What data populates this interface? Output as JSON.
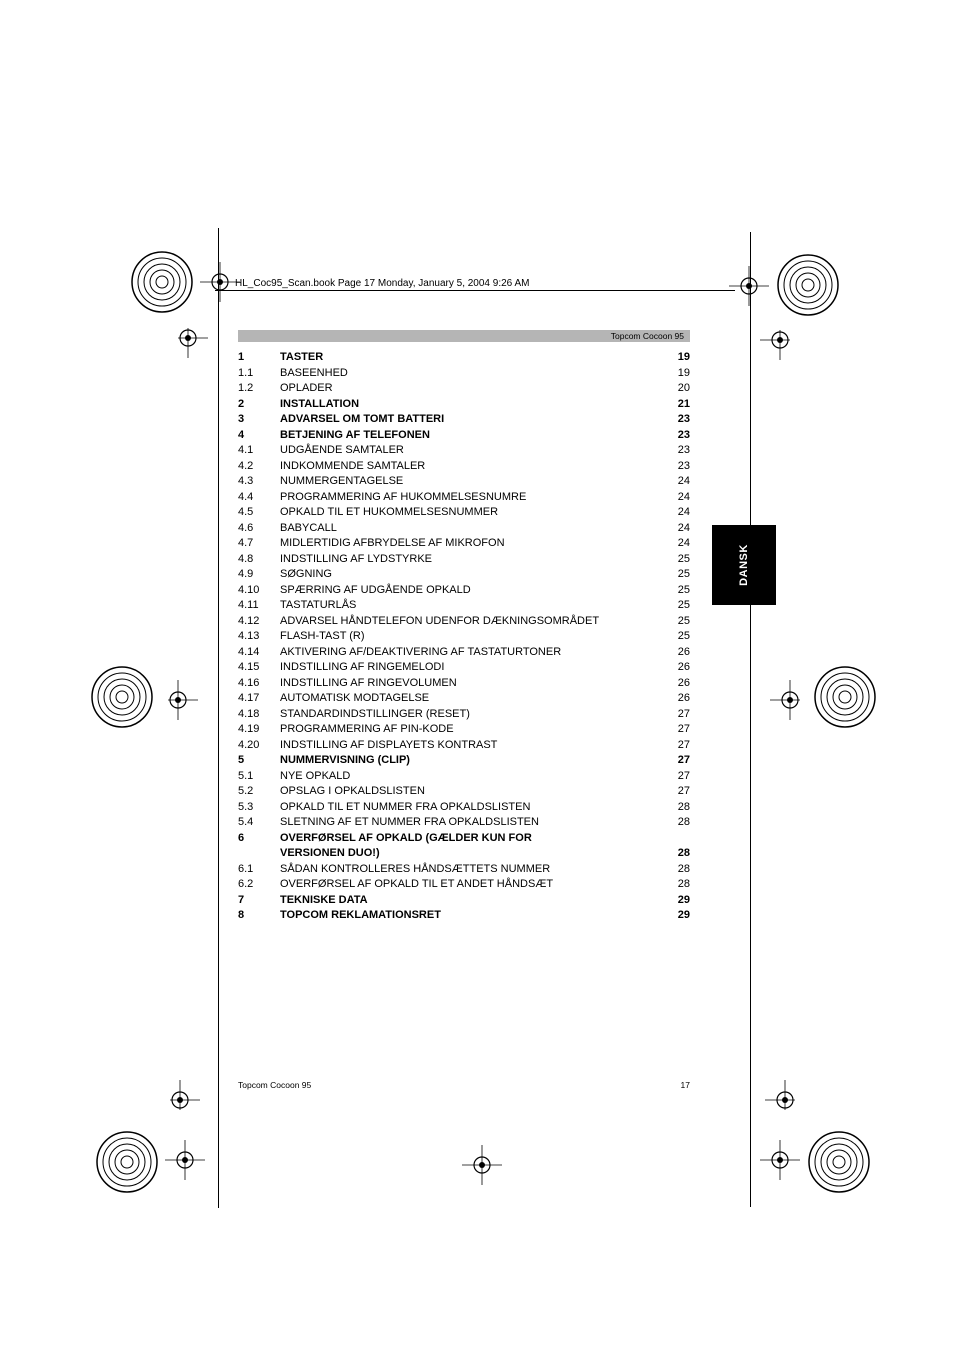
{
  "book_header": "HL_Coc95_Scan.book  Page 17  Monday, January 5, 2004  9:26 AM",
  "doc_title": "Topcom Cocoon 95",
  "side_tab": "DANSK",
  "footer_left": "Topcom Cocoon 95",
  "footer_page": "17",
  "toc": [
    {
      "num": "1",
      "title": "TASTER",
      "page": "19",
      "bold": true
    },
    {
      "num": "1.1",
      "title": "BASEENHED",
      "page": "19",
      "bold": false
    },
    {
      "num": "1.2",
      "title": "OPLADER",
      "page": "20",
      "bold": false
    },
    {
      "num": "2",
      "title": "INSTALLATION",
      "page": "21",
      "bold": true
    },
    {
      "num": "3",
      "title": "ADVARSEL OM TOMT BATTERI",
      "page": "23",
      "bold": true
    },
    {
      "num": "4",
      "title": "BETJENING AF TELEFONEN",
      "page": "23",
      "bold": true
    },
    {
      "num": "4.1",
      "title": "UDGÅENDE SAMTALER",
      "page": "23",
      "bold": false
    },
    {
      "num": "4.2",
      "title": "INDKOMMENDE SAMTALER",
      "page": "23",
      "bold": false
    },
    {
      "num": "4.3",
      "title": "NUMMERGENTAGELSE",
      "page": "24",
      "bold": false
    },
    {
      "num": "4.4",
      "title": "PROGRAMMERING AF HUKOMMELSESNUMRE",
      "page": "24",
      "bold": false
    },
    {
      "num": "4.5",
      "title": "OPKALD TIL ET HUKOMMELSESNUMMER",
      "page": "24",
      "bold": false
    },
    {
      "num": "4.6",
      "title": "BABYCALL",
      "page": "24",
      "bold": false
    },
    {
      "num": "4.7",
      "title": "MIDLERTIDIG AFBRYDELSE AF MIKROFON",
      "page": "24",
      "bold": false
    },
    {
      "num": "4.8",
      "title": "INDSTILLING AF LYDSTYRKE",
      "page": "25",
      "bold": false
    },
    {
      "num": "4.9",
      "title": "SØGNING",
      "page": "25",
      "bold": false
    },
    {
      "num": "4.10",
      "title": "SPÆRRING AF UDGÅENDE OPKALD",
      "page": "25",
      "bold": false
    },
    {
      "num": "4.11",
      "title": "TASTATURLÅS",
      "page": "25",
      "bold": false
    },
    {
      "num": "4.12",
      "title": "ADVARSEL HÅNDTELEFON UDENFOR DÆKNINGSOMRÅDET",
      "page": "25",
      "bold": false
    },
    {
      "num": "4.13",
      "title": "FLASH-TAST (R)",
      "page": "25",
      "bold": false
    },
    {
      "num": "4.14",
      "title": "AKTIVERING AF/DEAKTIVERING AF TASTATURTONER",
      "page": "26",
      "bold": false
    },
    {
      "num": "4.15",
      "title": "INDSTILLING AF RINGEMELODI",
      "page": "26",
      "bold": false
    },
    {
      "num": "4.16",
      "title": "INDSTILLING AF RINGEVOLUMEN",
      "page": "26",
      "bold": false
    },
    {
      "num": "4.17",
      "title": "AUTOMATISK MODTAGELSE",
      "page": "26",
      "bold": false
    },
    {
      "num": "4.18",
      "title": "STANDARDINDSTILLINGER (RESET)",
      "page": "27",
      "bold": false
    },
    {
      "num": "4.19",
      "title": "PROGRAMMERING AF PIN-KODE",
      "page": "27",
      "bold": false
    },
    {
      "num": "4.20",
      "title": "INDSTILLING AF DISPLAYETS KONTRAST",
      "page": "27",
      "bold": false
    },
    {
      "num": "5",
      "title": "NUMMERVISNING (CLIP)",
      "page": "27",
      "bold": true
    },
    {
      "num": "5.1",
      "title": "NYE OPKALD",
      "page": "27",
      "bold": false
    },
    {
      "num": "5.2",
      "title": "OPSLAG I OPKALDSLISTEN",
      "page": "27",
      "bold": false
    },
    {
      "num": "5.3",
      "title": "OPKALD TIL ET NUMMER FRA OPKALDSLISTEN",
      "page": "28",
      "bold": false
    },
    {
      "num": "5.4",
      "title": "SLETNING AF ET NUMMER FRA OPKALDSLISTEN",
      "page": "28",
      "bold": false
    },
    {
      "num": "6",
      "title": "OVERFØRSEL AF OPKALD (GÆLDER KUN FOR",
      "page": "",
      "bold": true
    },
    {
      "num": "",
      "title": "VERSIONEN DUO!)",
      "page": "28",
      "bold": true
    },
    {
      "num": "6.1",
      "title": "SÅDAN KONTROLLERES HÅNDSÆTTETS NUMMER",
      "page": "28",
      "bold": false
    },
    {
      "num": "6.2",
      "title": "OVERFØRSEL AF OPKALD TIL ET ANDET HÅNDSÆT",
      "page": "28",
      "bold": false
    },
    {
      "num": "7",
      "title": "TEKNISKE DATA",
      "page": "29",
      "bold": true
    },
    {
      "num": "8",
      "title": "TOPCOM REKLAMATIONSRET",
      "page": "29",
      "bold": true
    }
  ]
}
